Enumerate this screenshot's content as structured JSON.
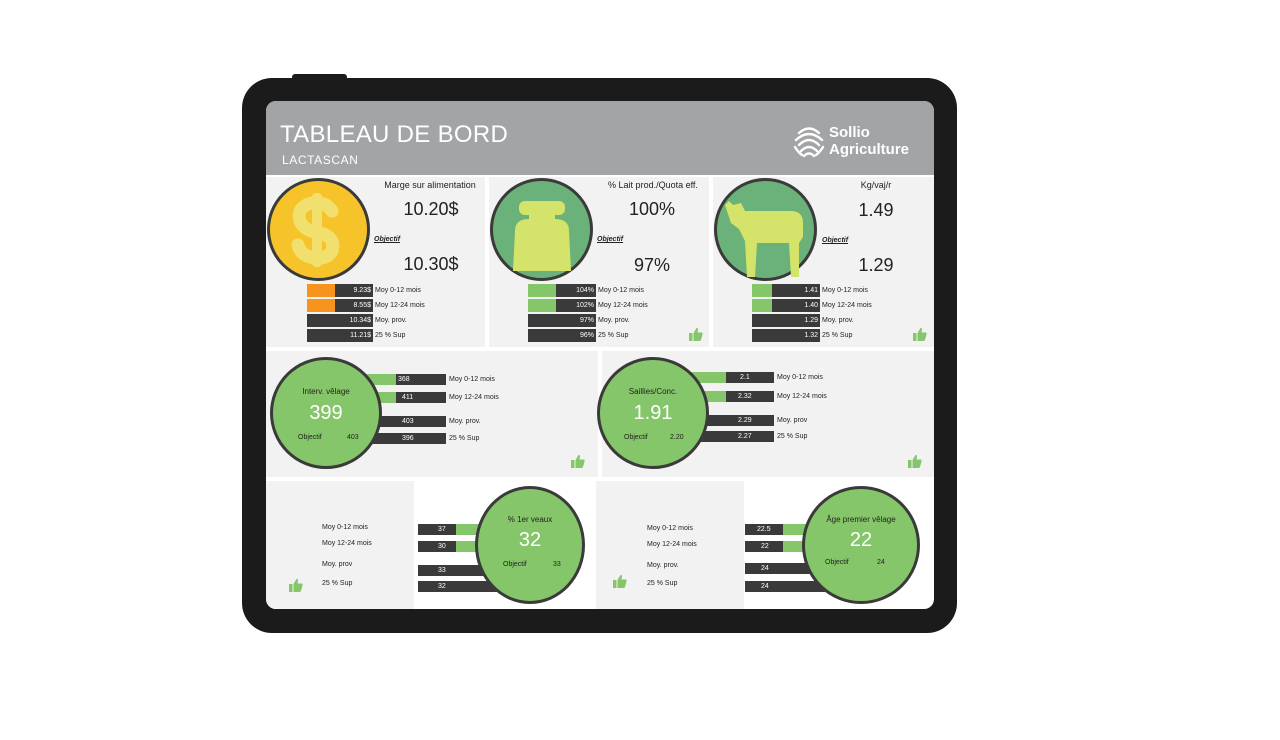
{
  "header": {
    "title": "TABLEAU DE BORD",
    "subtitle": "LACTASCAN",
    "logo_line1": "Sollio",
    "logo_line2": "Agriculture"
  },
  "colors": {
    "green": "#86c66a",
    "dark": "#3a3a3a",
    "orange": "#f7941d",
    "gold": "#f7c32b",
    "header_gray": "#a3a4a6"
  },
  "kpis": [
    {
      "title": "Marge sur alimentation",
      "value": "10.20$",
      "objective_label": "Objectif",
      "objective": "10.30$",
      "icon": "dollar-coin-icon",
      "rows": [
        {
          "value": "9.23$",
          "label": "Moy 0-12 mois"
        },
        {
          "value": "8.55$",
          "label": "Moy 12-24 mois"
        },
        {
          "value": "10.34$",
          "label": "Moy. prov."
        },
        {
          "value": "11.21$",
          "label": "25 % Sup"
        }
      ]
    },
    {
      "title": "% Lait prod./Quota eff.",
      "value": "100%",
      "objective_label": "Objectif",
      "objective": "97%",
      "icon": "milk-can-icon",
      "rows": [
        {
          "value": "104%",
          "label": "Moy 0-12 mois"
        },
        {
          "value": "102%",
          "label": "Moy 12-24 mois"
        },
        {
          "value": "97%",
          "label": "Moy. prov."
        },
        {
          "value": "96%",
          "label": "25 % Sup"
        }
      ]
    },
    {
      "title": "Kg/vaj/r",
      "value": "1.49",
      "objective_label": "Objectif",
      "objective": "1.29",
      "icon": "cow-icon",
      "rows": [
        {
          "value": "1.41",
          "label": "Moy 0-12 mois"
        },
        {
          "value": "1.40",
          "label": "Moy 12-24 mois"
        },
        {
          "value": "1.29",
          "label": "Moy. prov."
        },
        {
          "value": "1.32",
          "label": "25 % Sup"
        }
      ]
    }
  ],
  "gauges": [
    {
      "title": "Interv. vêlage",
      "value": "399",
      "objective_label": "Objectif",
      "objective": "403",
      "rows": [
        {
          "value": "368",
          "label": "Moy 0-12 mois"
        },
        {
          "value": "411",
          "label": "Moy 12-24 mois"
        },
        {
          "value": "403",
          "label": "Moy. prov."
        },
        {
          "value": "396",
          "label": "25 % Sup"
        }
      ]
    },
    {
      "title": "Saillies/Conc.",
      "value": "1.91",
      "objective_label": "Objectif",
      "objective": "2.20",
      "rows": [
        {
          "value": "2.1",
          "label": "Moy 0-12 mois"
        },
        {
          "value": "2.32",
          "label": "Moy 12-24 mois"
        },
        {
          "value": "2.29",
          "label": "Moy. prov"
        },
        {
          "value": "2.27",
          "label": "25 % Sup"
        }
      ]
    },
    {
      "title": "% 1er veaux",
      "value": "32",
      "objective_label": "Objectif",
      "objective": "33",
      "rows": [
        {
          "value": "37",
          "label": "Moy 0-12 mois"
        },
        {
          "value": "30",
          "label": "Moy 12-24 mois"
        },
        {
          "value": "33",
          "label": "Moy. prov"
        },
        {
          "value": "32",
          "label": "25 % Sup"
        }
      ]
    },
    {
      "title": "Âge premier vêlage",
      "value": "22",
      "objective_label": "Objectif",
      "objective": "24",
      "rows": [
        {
          "value": "22.5",
          "label": "Moy 0-12 mois"
        },
        {
          "value": "22",
          "label": "Moy 12-24 mois"
        },
        {
          "value": "24",
          "label": "Moy. prov."
        },
        {
          "value": "24",
          "label": "25 % Sup"
        }
      ]
    }
  ]
}
